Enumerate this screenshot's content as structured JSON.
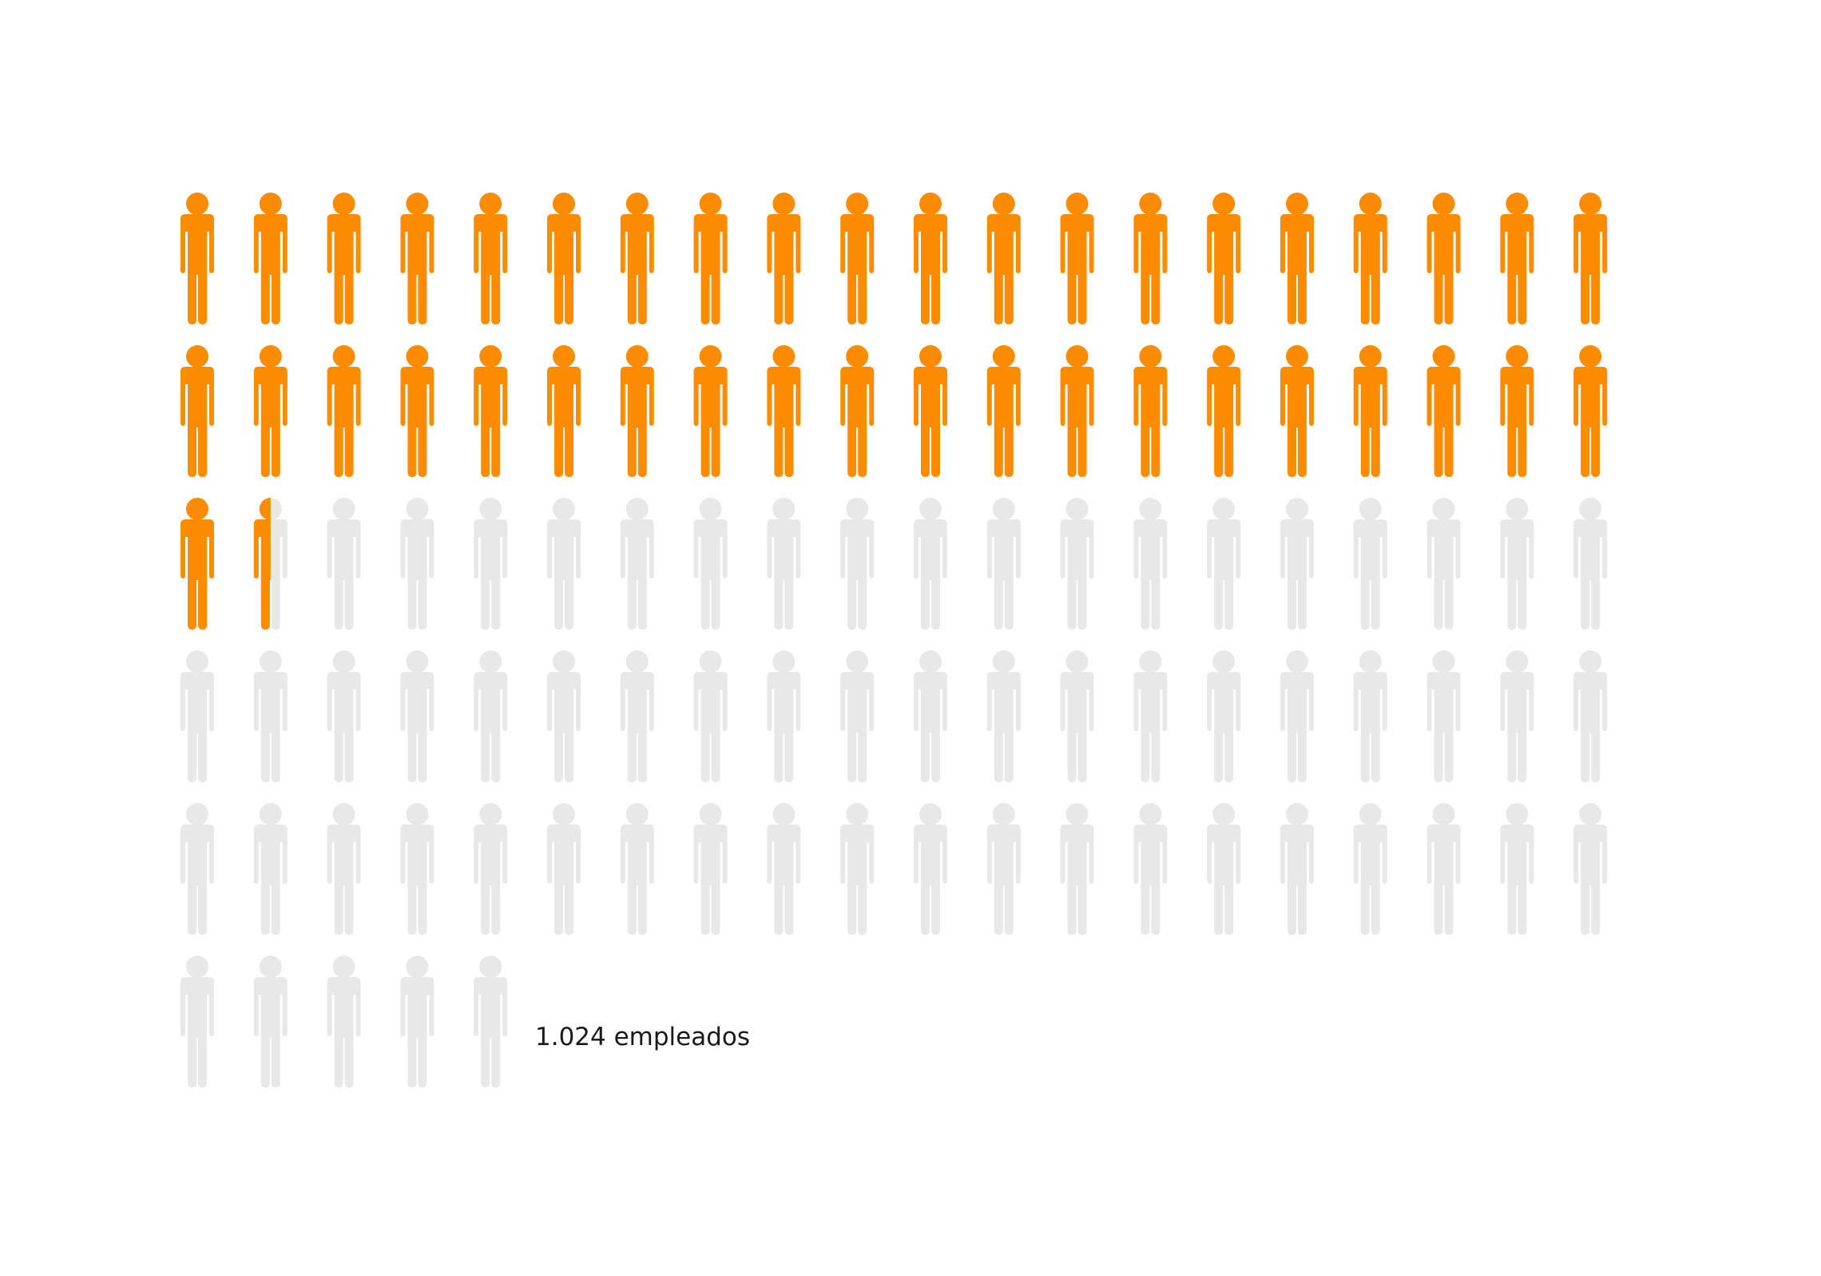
{
  "chart_data": {
    "type": "pictogram",
    "total_icons": 105,
    "icons_per_row": 20,
    "highlighted_icons": 41.5,
    "label": "1.024 empleados"
  },
  "colors": {
    "highlight": "#fb8c00",
    "base": "#e8e8e8",
    "background": "#ffffff",
    "label": "#1a1a1a"
  },
  "icon": "person-icon"
}
